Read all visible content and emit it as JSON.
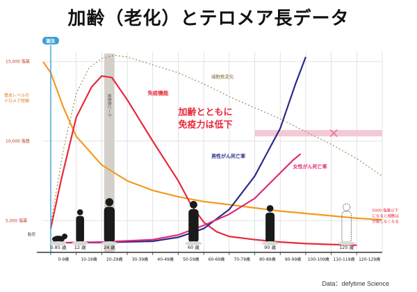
{
  "title": "加齢（老化）とテロメア長データ",
  "source": "Data：defytime Science",
  "chart_data": {
    "type": "line",
    "categories": [
      "0-9歳",
      "10-19歳",
      "20-29歳",
      "30-39歳",
      "40-49歳",
      "50-59歳",
      "60-69歳",
      "70-79歳",
      "80-89歳",
      "90-99歳",
      "100-109歳",
      "110-119歳",
      "120-129歳"
    ],
    "y_ticks": [
      {
        "value": 15000,
        "label": "15,000 塩基"
      },
      {
        "value": 10000,
        "label": "10,000 塩基"
      },
      {
        "value": 5000,
        "label": "5,000 塩基"
      }
    ],
    "ylim": [
      3000,
      15600
    ],
    "xlim": [
      -0.3,
      13
    ],
    "series": [
      {
        "name": "基本レベルの テロメア短縮",
        "color": "#f39a1e",
        "dash": "",
        "points": [
          [
            -0.3,
            15000
          ],
          [
            0,
            14300
          ],
          [
            0.5,
            12100
          ],
          [
            1,
            10300
          ],
          [
            2,
            8500
          ],
          [
            3,
            7500
          ],
          [
            4,
            6900
          ],
          [
            5,
            6500
          ],
          [
            6,
            6200
          ],
          [
            7,
            6000
          ],
          [
            8,
            5800
          ],
          [
            9,
            5600
          ],
          [
            10,
            5450
          ],
          [
            11,
            5300
          ],
          [
            12,
            5150
          ],
          [
            13,
            5050
          ]
        ]
      },
      {
        "name": "細胞数変化",
        "color": "#9a8a55",
        "dash": "2,3",
        "points": [
          [
            0,
            4800
          ],
          [
            0.5,
            9500
          ],
          [
            1,
            13000
          ],
          [
            1.5,
            14600
          ],
          [
            2,
            15200
          ],
          [
            2.5,
            15400
          ],
          [
            3,
            15300
          ],
          [
            4,
            14800
          ],
          [
            5,
            14300
          ],
          [
            6,
            13600
          ],
          [
            7,
            12800
          ],
          [
            8,
            12100
          ],
          [
            9,
            11400
          ],
          [
            10,
            10600
          ],
          [
            11,
            9800
          ],
          [
            12,
            8900
          ],
          [
            13,
            7800
          ]
        ]
      },
      {
        "name": "免疫機能",
        "color": "#e8283a",
        "dash": "",
        "points": [
          [
            0,
            4500
          ],
          [
            0.4,
            7500
          ],
          [
            1,
            11500
          ],
          [
            1.6,
            13400
          ],
          [
            2,
            14100
          ],
          [
            2.4,
            14000
          ],
          [
            3,
            12600
          ],
          [
            4,
            10000
          ],
          [
            5,
            7500
          ],
          [
            5.5,
            6000
          ],
          [
            6,
            4900
          ],
          [
            6.5,
            4300
          ],
          [
            7,
            4000
          ],
          [
            8,
            3800
          ],
          [
            9,
            3650
          ],
          [
            10,
            3550
          ],
          [
            11,
            3500
          ],
          [
            12,
            3450
          ]
        ]
      },
      {
        "name": "男性がん死亡率",
        "color": "#2a2a8a",
        "dash": "",
        "points": [
          [
            0,
            3600
          ],
          [
            2,
            3620
          ],
          [
            4,
            3700
          ],
          [
            5,
            3950
          ],
          [
            6,
            4500
          ],
          [
            7,
            5700
          ],
          [
            8,
            7800
          ],
          [
            9,
            10800
          ],
          [
            9.6,
            13600
          ],
          [
            10,
            15300
          ]
        ]
      },
      {
        "name": "女性がん死亡率",
        "color": "#e02a78",
        "dash": "",
        "points": [
          [
            0,
            3600
          ],
          [
            2,
            3650
          ],
          [
            4,
            3800
          ],
          [
            5,
            4100
          ],
          [
            6,
            4700
          ],
          [
            7,
            5400
          ],
          [
            8,
            6400
          ],
          [
            9,
            8000
          ],
          [
            9.5,
            8800
          ],
          [
            9.8,
            9200
          ]
        ]
      }
    ],
    "labels": {
      "blue_marker": "誕生",
      "immune": "免疫機能",
      "cell_count": "細胞数変化",
      "baseline": "基本レベルの",
      "baseline2": "テロメア短縮",
      "male": "男性がん死亡率",
      "female": "女性がん死亡率",
      "big1": "加齢とともに",
      "big2": "免疫力は低下",
      "peak": "細胞数ピーク",
      "limit1": "5000 塩基以下",
      "limit2": "になると細胞は",
      "limit3": "分裂しなくなる",
      "embryo": "胎児"
    },
    "figure_ages": [
      "0.85 歳",
      "12 歳",
      "24 歳",
      "60 歳",
      "90 歳",
      "125 歳"
    ],
    "colors": {
      "axis": "#333333",
      "grid": "#d9d9d9",
      "birth": "#3aa0d8",
      "peak_band": "#cdc7c0",
      "pink_band": "#f4c9d6",
      "cross": "#e6738f"
    }
  }
}
